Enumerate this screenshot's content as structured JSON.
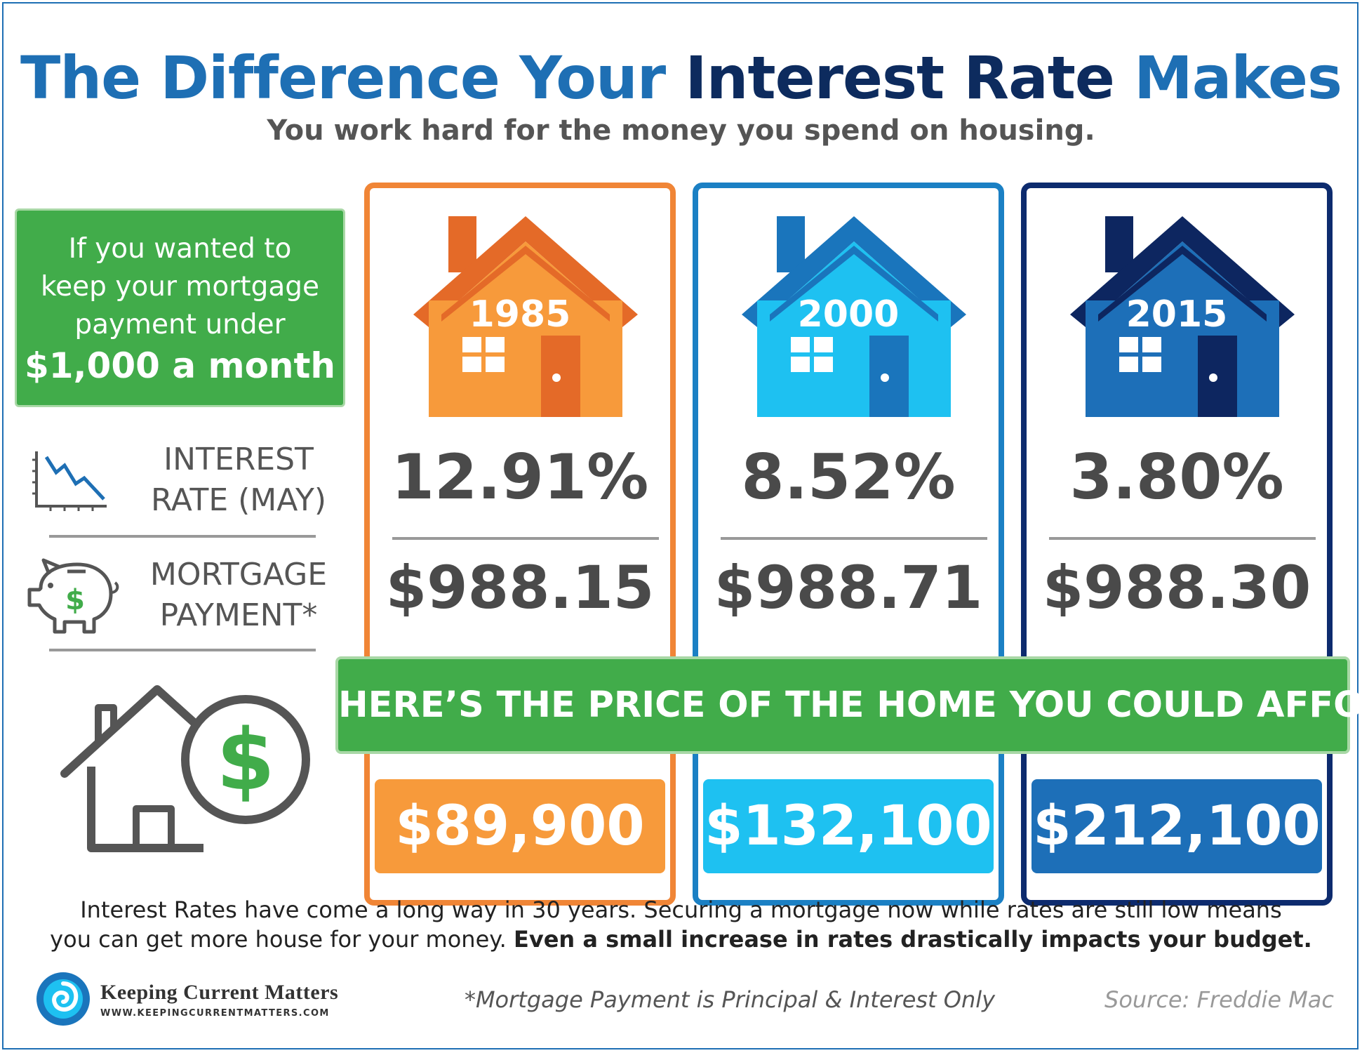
{
  "title": {
    "part1": "The Difference Your ",
    "part2": "Interest Rate",
    "part3": " Makes"
  },
  "subtitle": "You work hard for the money you spend on housing.",
  "intro_box": {
    "line1": "If you wanted to",
    "line2": "keep your mortgage",
    "line3": "payment under",
    "line4": "$1,000 a month"
  },
  "row_labels": {
    "interest_line1": "INTEREST",
    "interest_line2": "RATE (MAY)",
    "mortgage_line1": "MORTGAGE",
    "mortgage_line2": "PAYMENT*"
  },
  "icons": {
    "rate": "declining-chart-icon",
    "piggy": "piggy-bank-dollar-icon",
    "home_price": "house-dollar-icon",
    "brand": "swirl-logo-icon"
  },
  "columns": [
    {
      "year": "1985",
      "rate": "12.91%",
      "payment": "$988.15",
      "price": "$89,900",
      "color": "#f08536",
      "light": "#f79a3b",
      "dark": "#e46a28"
    },
    {
      "year": "2000",
      "rate": "8.52%",
      "payment": "$988.71",
      "price": "$132,100",
      "color": "#1b80c4",
      "light": "#1ec1f1",
      "dark": "#1a75bc"
    },
    {
      "year": "2015",
      "rate": "3.80%",
      "payment": "$988.30",
      "price": "$212,100",
      "color": "#0d2b6e",
      "light": "#1d6fb8",
      "dark": "#0d2660"
    }
  ],
  "banner": "HERE’S THE PRICE OF THE HOME YOU COULD AFFORD",
  "footer": {
    "line1": "Interest Rates have come a long way in 30 years. Securing a mortgage now while rates are still low means",
    "line2_normal": "you can get more house for your money. ",
    "line2_bold": "Even a small increase in rates drastically impacts your budget."
  },
  "note": "*Mortgage Payment is Principal & Interest Only",
  "source": "Source: Freddie Mac",
  "brand": {
    "name": "Keeping Current Matters",
    "url": "WWW.KEEPINGCURRENTMATTERS.COM"
  }
}
